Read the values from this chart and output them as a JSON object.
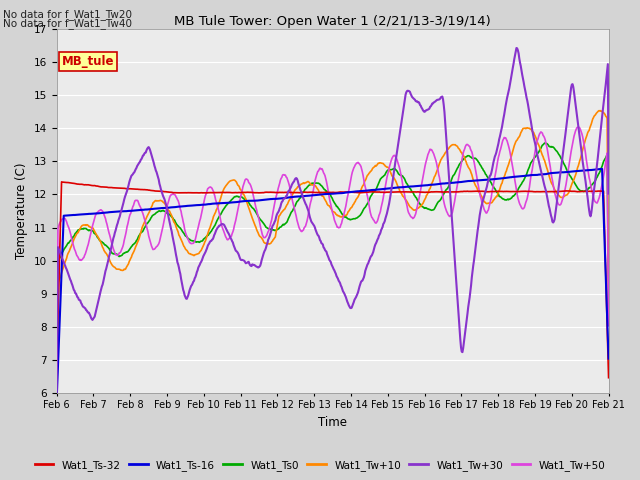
{
  "title": "MB Tule Tower: Open Water 1 (2/21/13-3/19/14)",
  "xlabel": "Time",
  "ylabel": "Temperature (C)",
  "ylim": [
    6.0,
    17.0
  ],
  "yticks": [
    6.0,
    7.0,
    8.0,
    9.0,
    10.0,
    11.0,
    12.0,
    13.0,
    14.0,
    15.0,
    16.0,
    17.0
  ],
  "fig_bg": "#d4d4d4",
  "plot_bg": "#ebebeb",
  "grid_color": "#ffffff",
  "no_data_text": [
    "No data for f_Wat1_Tw20",
    "No data for f_Wat1_Tw40"
  ],
  "legend_box_label": "MB_tule",
  "legend_box_color": "#ffff99",
  "legend_box_border": "#cc0000",
  "tick_labels": [
    "Feb 6",
    "Feb 7",
    "Feb 8",
    "Feb 9",
    "Feb 10",
    "Feb 11",
    "Feb 12",
    "Feb 13",
    "Feb 14",
    "Feb 15",
    "Feb 16",
    "Feb 17",
    "Feb 18",
    "Feb 19",
    "Feb 20",
    "Feb 21"
  ],
  "series_colors": {
    "Wat1_Ts-32": "#dd0000",
    "Wat1_Ts-16": "#0000dd",
    "Wat1_Ts0": "#00aa00",
    "Wat1_Tw+10": "#ff8800",
    "Wat1_Tw+30": "#8833cc",
    "Wat1_Tw+50": "#dd44dd"
  }
}
